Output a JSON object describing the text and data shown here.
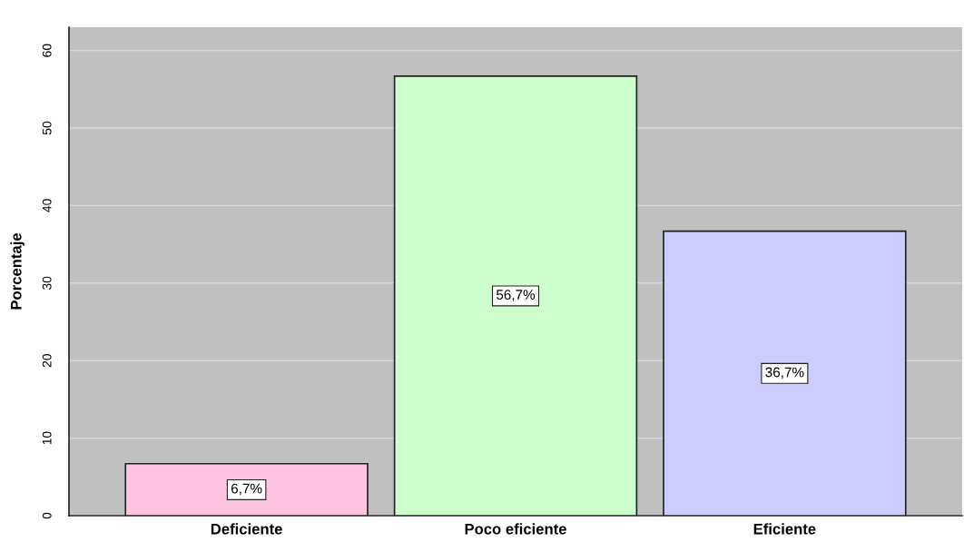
{
  "chart_data": {
    "type": "bar",
    "ylabel": "Porcentaje",
    "categories": [
      "Deficiente",
      "Poco eficiente",
      "Eficiente"
    ],
    "values": [
      6.7,
      56.7,
      36.7
    ],
    "colors": [
      "#ffc4e1",
      "#ccffcc",
      "#ccccff"
    ],
    "value_labels": [
      "6,7%",
      "56,7%",
      "36,7%"
    ],
    "ylim": [
      0,
      63
    ],
    "yticks": [
      0,
      10,
      20,
      30,
      40,
      50,
      60
    ],
    "grid": "y",
    "legend": false
  }
}
